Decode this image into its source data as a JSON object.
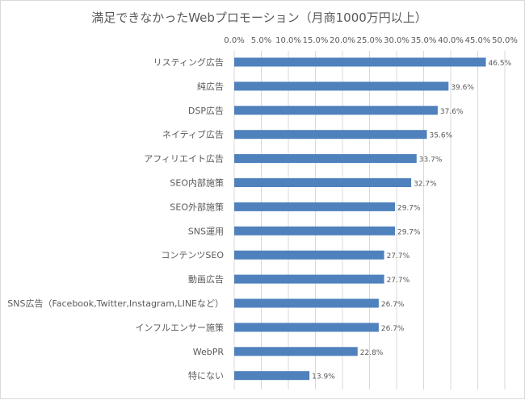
{
  "chart_data": {
    "type": "bar",
    "orientation": "horizontal",
    "title": "満足できなかったWebプロモーション（月商1000万円以上）",
    "xlim": [
      0,
      50
    ],
    "x_ticks": [
      "0.0%",
      "5.0%",
      "10.0%",
      "15.0%",
      "20.0%",
      "25.0%",
      "30.0%",
      "35.0%",
      "40.0%",
      "45.0%",
      "50.0%"
    ],
    "x_tick_values": [
      0,
      5,
      10,
      15,
      20,
      25,
      30,
      35,
      40,
      45,
      50
    ],
    "categories": [
      "リスティング広告",
      "純広告",
      "DSP広告",
      "ネイティブ広告",
      "アフィリエイト広告",
      "SEO内部施策",
      "SEO外部施策",
      "SNS運用",
      "コンテンツSEO",
      "動画広告",
      "SNS広告（Facebook,Twitter,Instagram,LINEなど）",
      "インフルエンサー施策",
      "WebPR",
      "特にない"
    ],
    "values": [
      46.5,
      39.6,
      37.6,
      35.6,
      33.7,
      32.7,
      29.7,
      29.7,
      27.7,
      27.7,
      26.7,
      26.7,
      22.8,
      13.9
    ],
    "value_labels": [
      "46.5%",
      "39.6%",
      "37.6%",
      "35.6%",
      "33.7%",
      "32.7%",
      "29.7%",
      "29.7%",
      "27.7%",
      "27.7%",
      "26.7%",
      "26.7%",
      "22.8%",
      "13.9%"
    ],
    "grid": true,
    "legend": "none",
    "bar_color": "#4f81bd",
    "grid_color": "#d9d9d9",
    "text_color": "#595959"
  }
}
